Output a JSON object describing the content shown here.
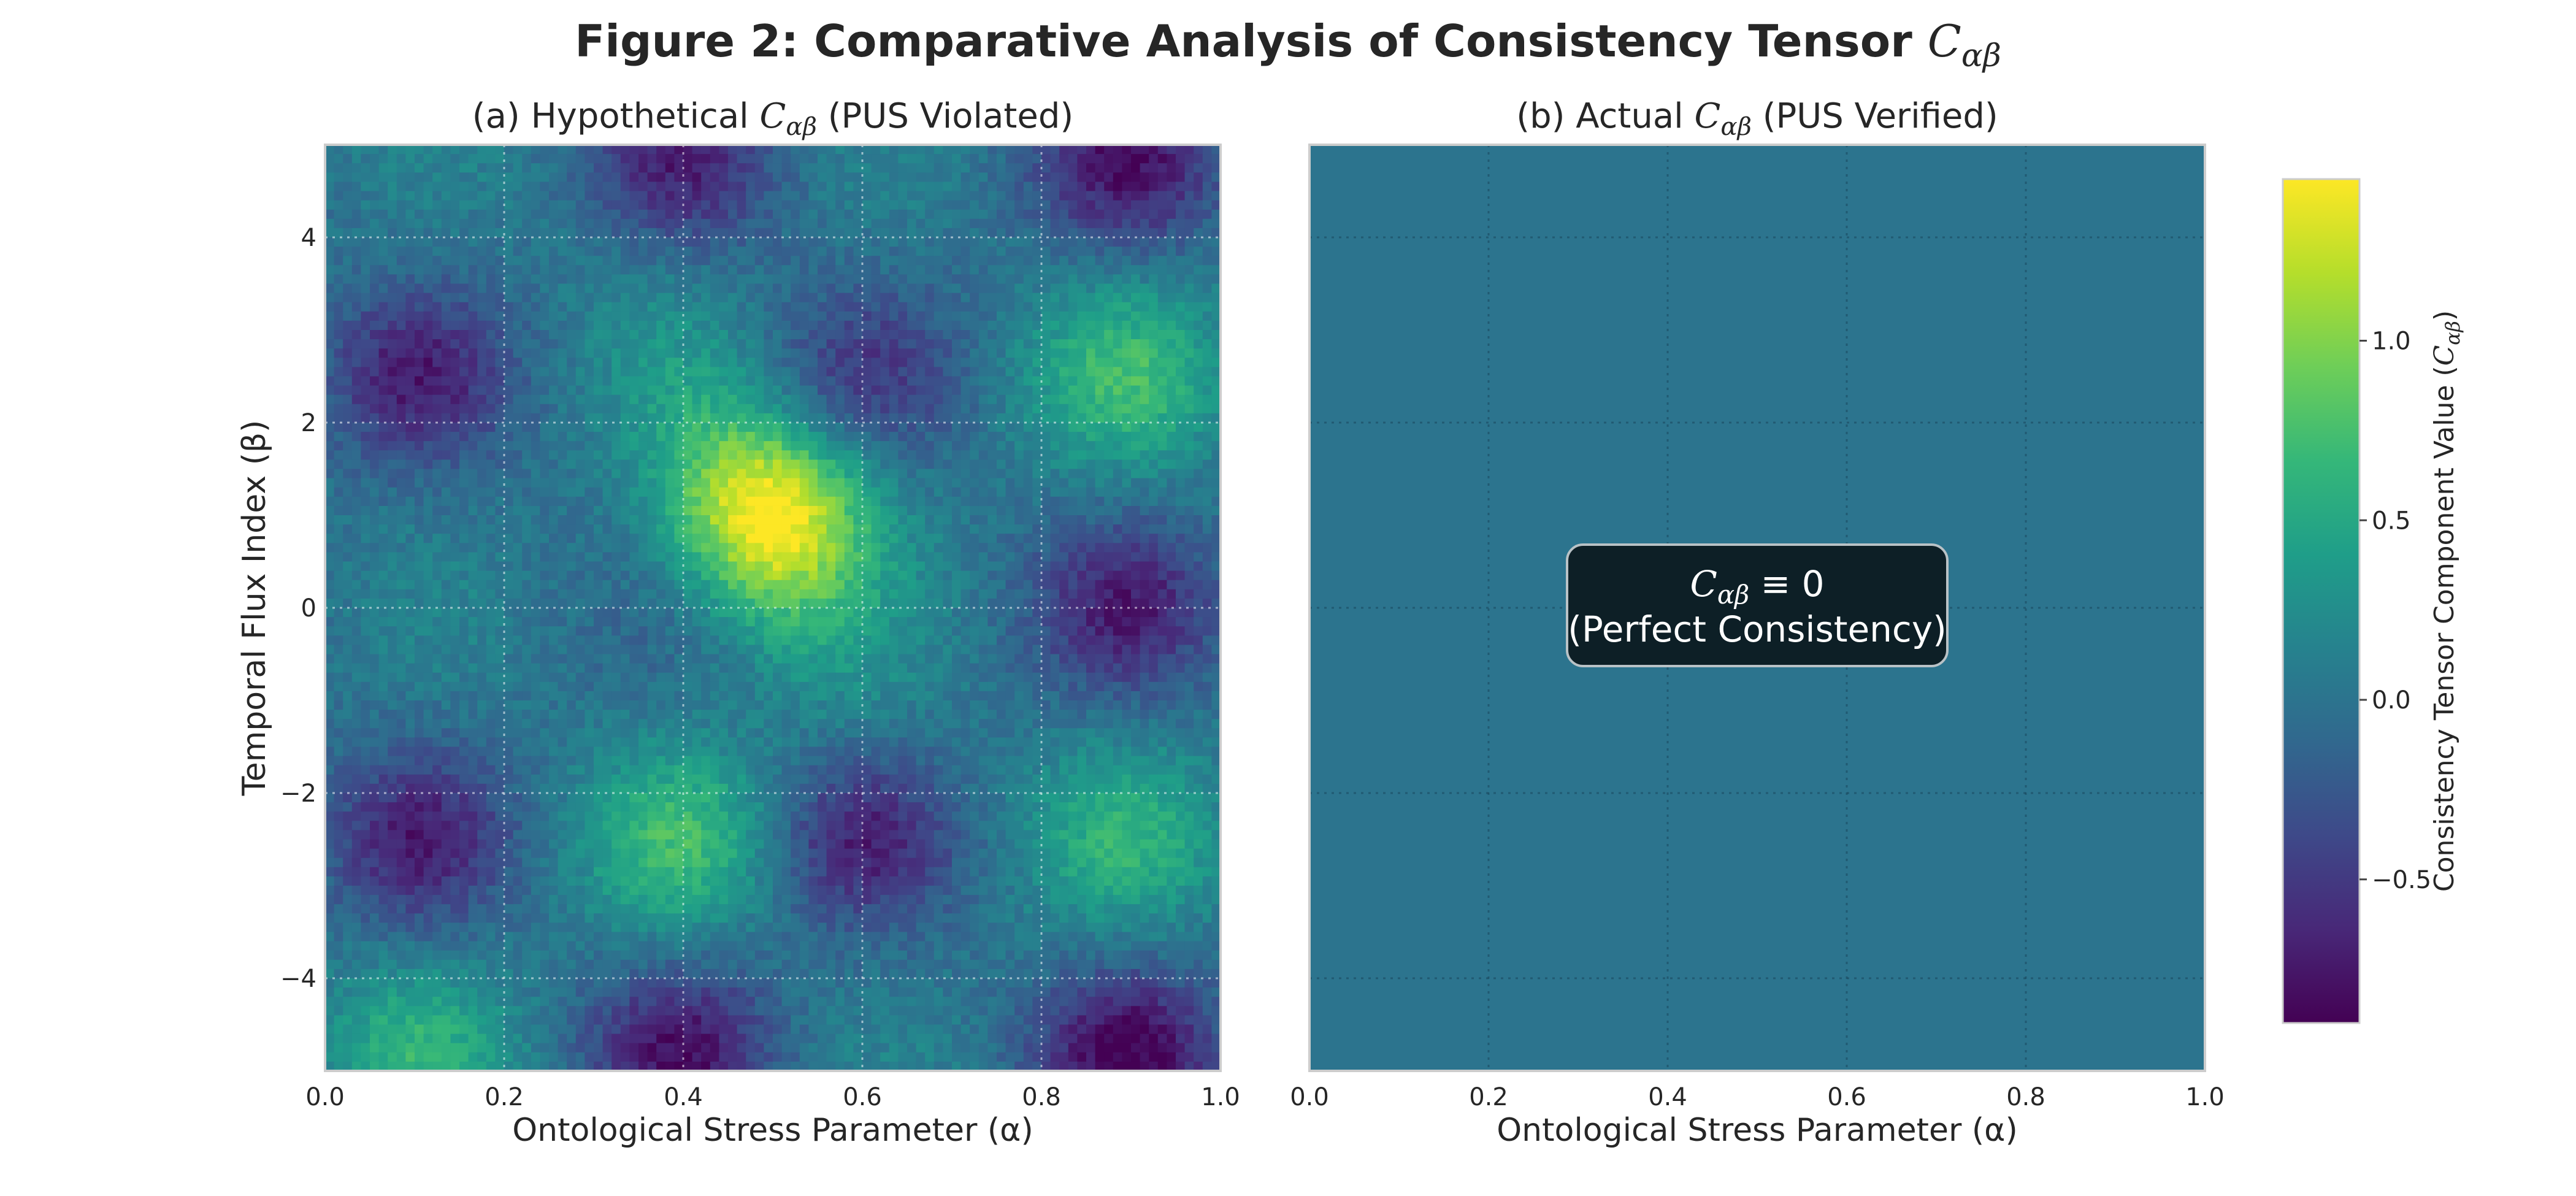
{
  "figure": {
    "title_main": "Figure 2: Comparative Analysis of Consistency Tensor ",
    "title_symbol": "C",
    "title_subscript": "αβ"
  },
  "chart_data": [
    {
      "type": "heatmap",
      "title_prefix": "(a) Hypothetical ",
      "title_symbol": "C",
      "title_subscript": "αβ",
      "title_suffix": " (PUS Violated)",
      "xlabel": "Ontological Stress Parameter (α)",
      "ylabel": "Temporal Flux Index (β)",
      "xlim": [
        0.0,
        1.0
      ],
      "ylim": [
        -5,
        5
      ],
      "xticks": [
        "0.0",
        "0.2",
        "0.4",
        "0.6",
        "0.8",
        "1.0"
      ],
      "yticks": [
        "−4",
        "−2",
        "0",
        "2",
        "4"
      ],
      "ytick_values": [
        -4,
        -2,
        0,
        2,
        4
      ],
      "grid": true,
      "colormap": "viridis",
      "value_range": [
        -0.9,
        1.45
      ],
      "field": {
        "description_of_visible_pattern": "",
        "peaks": [
          {
            "alpha": 0.5,
            "beta": 1.0,
            "value": 1.2
          },
          {
            "alpha": 0.4,
            "beta": -2.5,
            "value": 0.6
          },
          {
            "alpha": 0.9,
            "beta": 2.5,
            "value": 0.6
          },
          {
            "alpha": 0.9,
            "beta": -2.5,
            "value": 0.5
          },
          {
            "alpha": 0.1,
            "beta": -4.8,
            "value": 0.5
          }
        ],
        "troughs": [
          {
            "alpha": 0.1,
            "beta": 2.5,
            "value": -0.6
          },
          {
            "alpha": 0.1,
            "beta": -2.5,
            "value": -0.6
          },
          {
            "alpha": 0.6,
            "beta": 2.5,
            "value": -0.4
          },
          {
            "alpha": 0.9,
            "beta": 0.0,
            "value": -0.6
          },
          {
            "alpha": 0.6,
            "beta": -2.5,
            "value": -0.6
          },
          {
            "alpha": 0.4,
            "beta": 4.8,
            "value": -0.6
          },
          {
            "alpha": 0.9,
            "beta": 4.8,
            "value": -0.7
          },
          {
            "alpha": 0.4,
            "beta": -4.8,
            "value": -0.7
          },
          {
            "alpha": 0.9,
            "beta": -4.8,
            "value": -0.8
          }
        ]
      }
    },
    {
      "type": "heatmap",
      "title_prefix": "(b) Actual ",
      "title_symbol": "C",
      "title_subscript": "αβ",
      "title_suffix": " (PUS Verified)",
      "xlabel": "Ontological Stress Parameter (α)",
      "ylabel": "",
      "xlim": [
        0.0,
        1.0
      ],
      "ylim": [
        -5,
        5
      ],
      "xticks": [
        "0.0",
        "0.2",
        "0.4",
        "0.6",
        "0.8",
        "1.0"
      ],
      "grid": true,
      "constant_value": 0.0,
      "annotation": {
        "line1_symbol": "C",
        "line1_subscript": "αβ",
        "line1_rest": " ≡ 0",
        "line2": "(Perfect Consistency)",
        "box_color": "#0d1f26"
      }
    }
  ],
  "colorbar": {
    "label_prefix": "Consistency Tensor Component Value (",
    "label_symbol": "C",
    "label_subscript": "αβ",
    "label_suffix": ")",
    "ticks": [
      "−0.5",
      "0.0",
      "0.5",
      "1.0"
    ],
    "tick_values": [
      -0.5,
      0.0,
      0.5,
      1.0
    ],
    "range": [
      -0.9,
      1.45
    ],
    "colormap_stops": [
      "#440154",
      "#482878",
      "#3e4989",
      "#31688e",
      "#26828e",
      "#1f9e89",
      "#35b779",
      "#6ece58",
      "#b5de2b",
      "#fde725"
    ]
  }
}
